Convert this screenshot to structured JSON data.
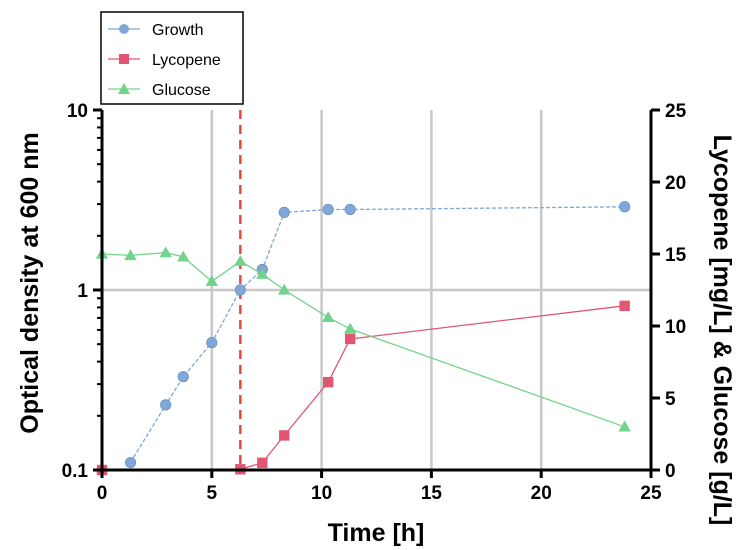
{
  "chart_data": {
    "type": "line",
    "xlabel": "Time [h]",
    "ylabel": "Optical density at 600 nm",
    "y2label": "Lycopene [mg/L] & Glucose [g/L]",
    "xlim": [
      0,
      25
    ],
    "ylim": [
      0.1,
      10
    ],
    "y_scale": "log",
    "y2lim": [
      0,
      25
    ],
    "grid": true,
    "legend_position": "top-left",
    "x_ticks": [
      "0",
      "5",
      "10",
      "15",
      "20",
      "25"
    ],
    "y_ticks": [
      "0.1",
      "1",
      "10"
    ],
    "y2_ticks": [
      "0",
      "5",
      "10",
      "15",
      "20",
      "25"
    ],
    "vertical_line_x": 6.3,
    "series": [
      {
        "name": "Growth",
        "axis": "left",
        "color": "#7fa8d8",
        "marker": "circle",
        "x": [
          1.3,
          2.9,
          3.7,
          5.0,
          6.3,
          7.3,
          8.3,
          10.3,
          11.3,
          23.8
        ],
        "values": [
          0.11,
          0.23,
          0.33,
          0.51,
          1.0,
          1.3,
          2.7,
          2.8,
          2.8,
          2.9
        ]
      },
      {
        "name": "Lycopene",
        "axis": "right",
        "color": "#e05673",
        "marker": "square",
        "x": [
          0,
          6.3,
          7.3,
          8.3,
          10.3,
          11.3,
          23.8
        ],
        "values": [
          0.0,
          0.05,
          0.5,
          2.4,
          6.1,
          9.1,
          11.4
        ]
      },
      {
        "name": "Glucose",
        "axis": "right",
        "color": "#72d48a",
        "marker": "triangle",
        "x": [
          0,
          1.3,
          2.9,
          3.7,
          5.0,
          6.3,
          7.3,
          8.3,
          10.3,
          11.3,
          23.8
        ],
        "values": [
          15.0,
          14.9,
          15.1,
          14.8,
          13.1,
          14.5,
          13.6,
          12.5,
          10.6,
          9.8,
          3.0
        ]
      }
    ]
  }
}
